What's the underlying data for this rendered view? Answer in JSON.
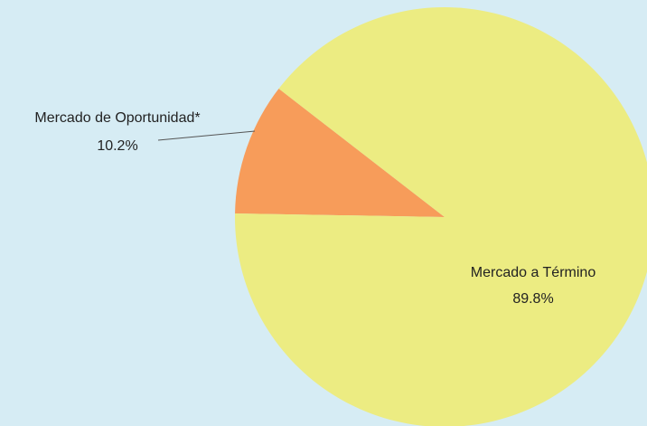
{
  "chart_data": {
    "type": "pie",
    "categories": [
      "Mercado de Oportunidad*",
      "Mercado a Término"
    ],
    "values": [
      10.2,
      89.8
    ],
    "value_labels": [
      "10.2%",
      "89.8%"
    ],
    "colors": [
      "#f79c5a",
      "#ecec82"
    ]
  }
}
